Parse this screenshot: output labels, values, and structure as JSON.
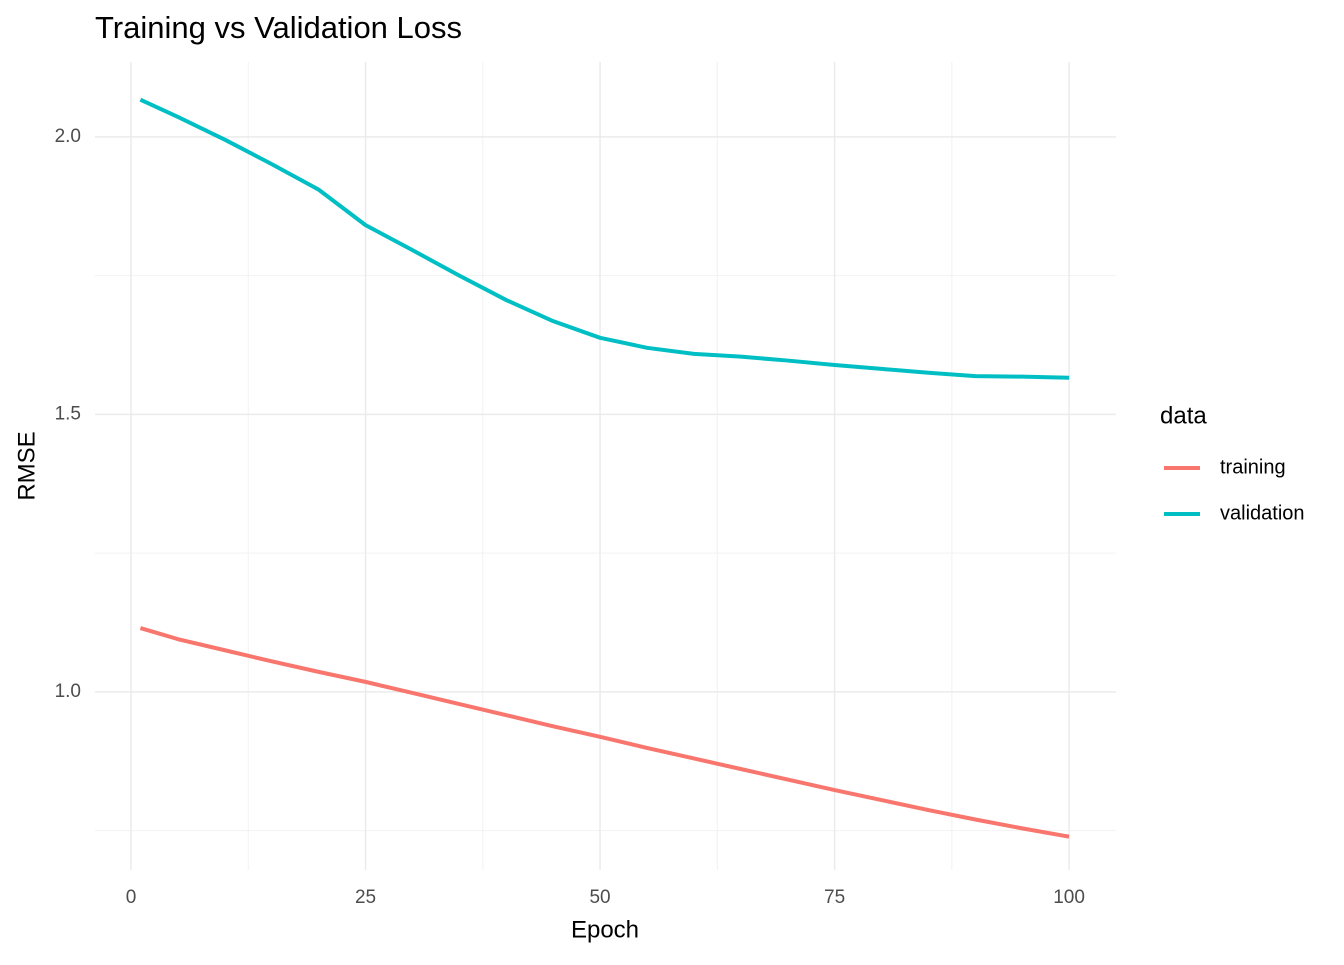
{
  "chart_data": {
    "type": "line",
    "title": "Training vs Validation Loss",
    "x_label": "Epoch",
    "y_label": "RMSE",
    "legend_title": "data",
    "legend_position": "right",
    "grid": true,
    "x": [
      1,
      5,
      10,
      15,
      20,
      25,
      30,
      35,
      40,
      45,
      50,
      55,
      60,
      65,
      70,
      75,
      80,
      85,
      90,
      95,
      100
    ],
    "series": [
      {
        "name": "training",
        "color": "#F8766D",
        "values": [
          1.115,
          1.095,
          1.075,
          1.055,
          1.036,
          1.018,
          0.998,
          0.978,
          0.958,
          0.938,
          0.919,
          0.899,
          0.88,
          0.861,
          0.842,
          0.823,
          0.805,
          0.787,
          0.77,
          0.754,
          0.739
        ]
      },
      {
        "name": "validation",
        "color": "#00BFC4",
        "values": [
          2.067,
          2.036,
          1.995,
          1.951,
          1.905,
          1.841,
          1.796,
          1.75,
          1.706,
          1.668,
          1.638,
          1.62,
          1.609,
          1.604,
          1.597,
          1.589,
          1.582,
          1.575,
          1.569,
          1.568,
          1.566
        ]
      }
    ],
    "xlim": [
      -3.84,
      105
    ],
    "xticks": [
      0,
      25,
      50,
      75,
      100
    ],
    "ylim": [
      0.679,
      2.135
    ],
    "yticks": [
      {
        "value": 1,
        "label": "1.0"
      },
      {
        "value": 1.5,
        "label": "1.5"
      },
      {
        "value": 2,
        "label": "2.0"
      }
    ]
  }
}
